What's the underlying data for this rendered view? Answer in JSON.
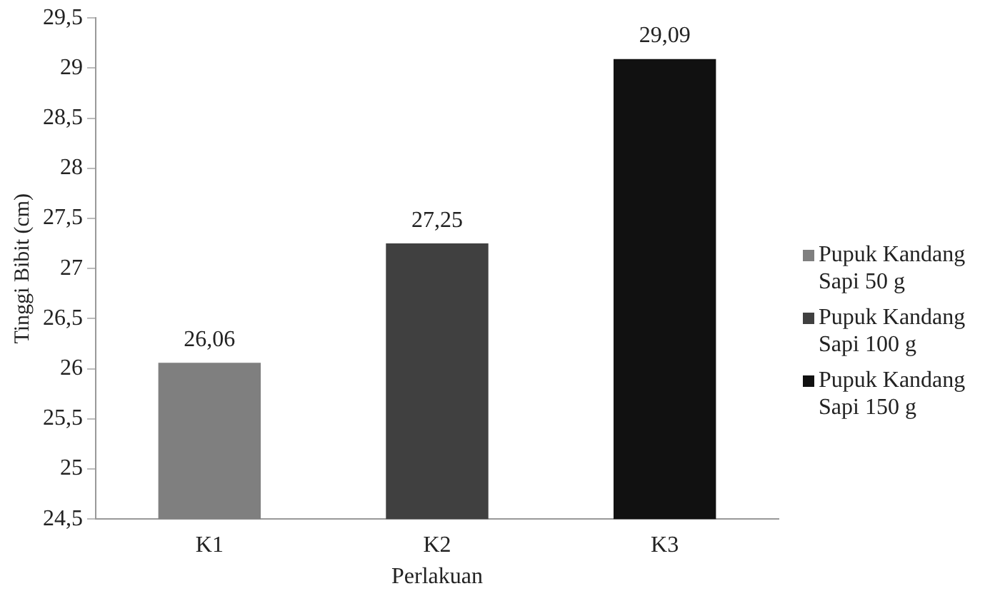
{
  "chart_data": {
    "type": "bar",
    "xlabel": "Perlakuan",
    "ylabel": "Tinggi Bibit (cm)",
    "categories": [
      "K1",
      "K2",
      "K3"
    ],
    "series": [
      {
        "name": "Pupuk Kandang Sapi 50 g",
        "color": "#7f7f7f",
        "values": [
          26.06,
          null,
          null
        ],
        "value_labels": [
          "26,06",
          null,
          null
        ]
      },
      {
        "name": "Pupuk Kandang Sapi 100 g",
        "color": "#404040",
        "values": [
          null,
          27.25,
          null
        ],
        "value_labels": [
          null,
          "27,25",
          null
        ]
      },
      {
        "name": "Pupuk Kandang Sapi 150 g",
        "color": "#111111",
        "values": [
          null,
          null,
          29.09
        ],
        "value_labels": [
          null,
          null,
          "29,09"
        ]
      }
    ],
    "ylim": [
      24.5,
      29.5
    ],
    "yticks": [
      {
        "value": 24.5,
        "label": "24,5"
      },
      25,
      {
        "value": 25.5,
        "label": "25,5"
      },
      26,
      {
        "value": 26.5,
        "label": "26,5"
      },
      27,
      {
        "value": 27.5,
        "label": "27,5"
      },
      28,
      {
        "value": 28.5,
        "label": "28,5"
      },
      29,
      {
        "value": 29.5,
        "label": "29,5"
      }
    ],
    "grid": false,
    "legend": "right"
  }
}
